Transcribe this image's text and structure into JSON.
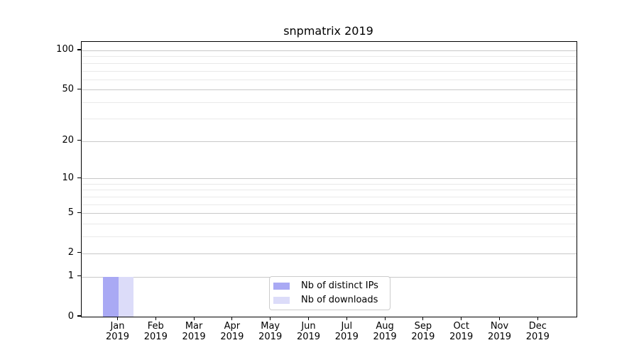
{
  "title": "snpmatrix 2019",
  "chart_data": {
    "type": "bar",
    "title": "snpmatrix 2019",
    "categories": [
      "Jan",
      "Feb",
      "Mar",
      "Apr",
      "May",
      "Jun",
      "Jul",
      "Aug",
      "Sep",
      "Oct",
      "Nov",
      "Dec"
    ],
    "x_tick_year": "2019",
    "series": [
      {
        "name": "Nb of distinct IPs",
        "color": "#a9a9f4",
        "values": [
          1,
          0,
          0,
          0,
          0,
          0,
          0,
          0,
          0,
          0,
          0,
          0
        ]
      },
      {
        "name": "Nb of downloads",
        "color": "#dcdcf9",
        "values": [
          1,
          0,
          0,
          0,
          0,
          0,
          0,
          0,
          0,
          0,
          0,
          0
        ]
      }
    ],
    "yticks": [
      0,
      1,
      2,
      5,
      10,
      20,
      50,
      100
    ],
    "minor_yticks": [
      3,
      4,
      6,
      7,
      8,
      9,
      30,
      40,
      60,
      70,
      80,
      90
    ],
    "y_scale": "log1p",
    "ylim": [
      0,
      116
    ],
    "xlabel": "",
    "ylabel": "",
    "grid": true,
    "legend_position": "bottom-center",
    "colors": {
      "major_grid": "#c8c8c8",
      "minor_grid": "#e9e9e9",
      "axis": "#000000",
      "background": "#ffffff"
    }
  }
}
